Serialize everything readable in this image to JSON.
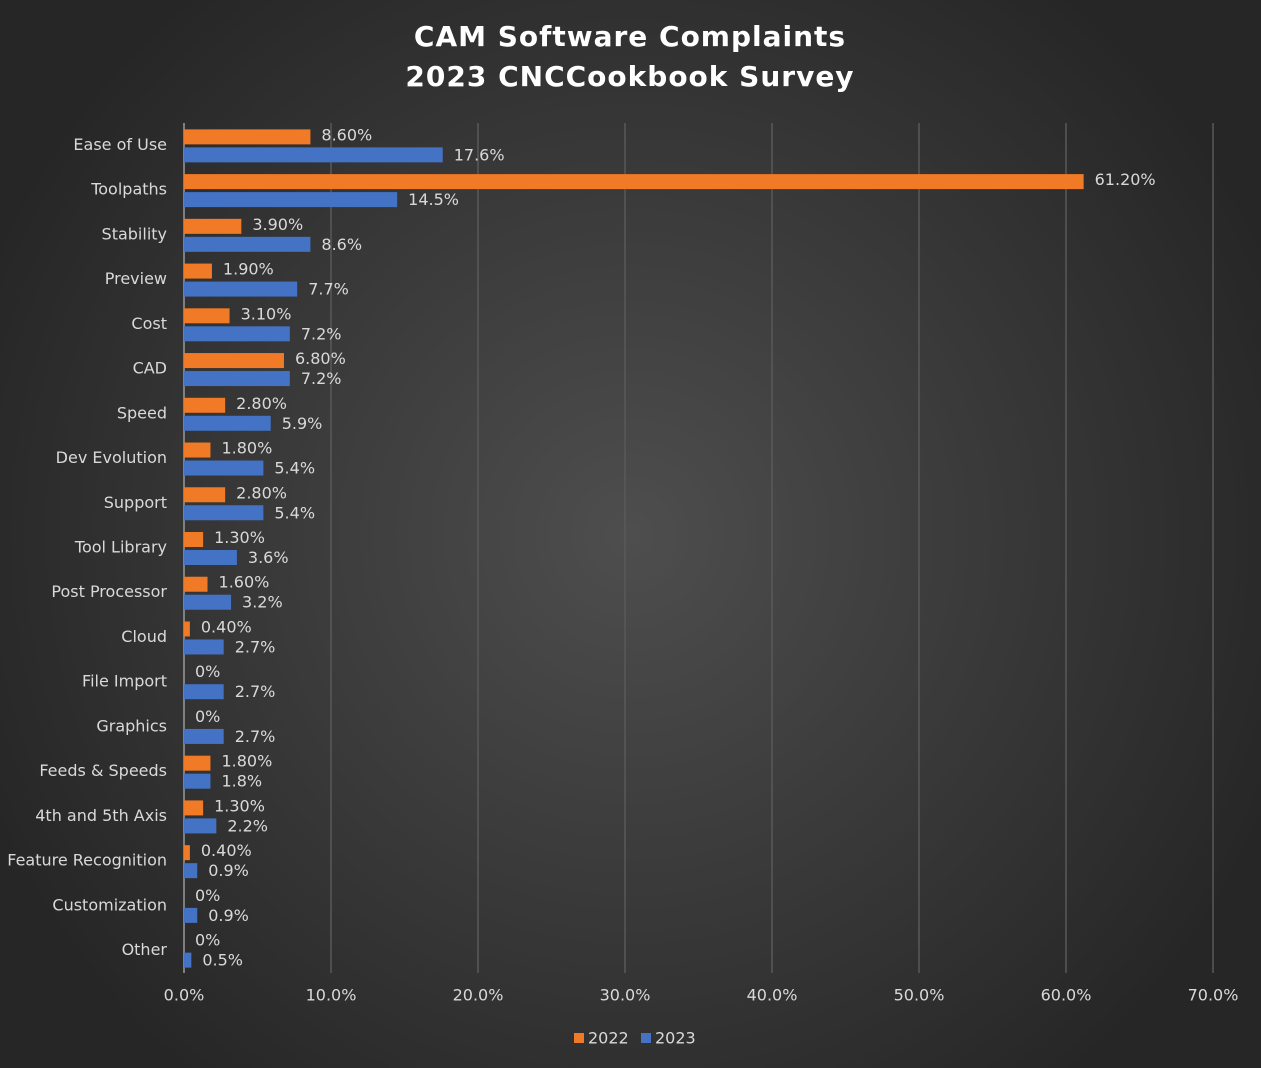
{
  "chart_data": {
    "type": "bar",
    "orientation": "horizontal",
    "title": "CAM Software Complaints",
    "subtitle": "2023 CNCCookbook Survey",
    "categories": [
      "Ease of Use",
      "Toolpaths",
      "Stability",
      "Preview",
      "Cost",
      "CAD",
      "Speed",
      "Dev Evolution",
      "Support",
      "Tool Library",
      "Post Processor",
      "Cloud",
      "File Import",
      "Graphics",
      "Feeds & Speeds",
      "4th and 5th Axis",
      "Feature Recognition",
      "Customization",
      "Other"
    ],
    "series": [
      {
        "name": "2022",
        "color": "#f07a25",
        "values": [
          8.6,
          61.2,
          3.9,
          1.9,
          3.1,
          6.8,
          2.8,
          1.8,
          2.8,
          1.3,
          1.6,
          0.4,
          0,
          0,
          1.8,
          1.3,
          0.4,
          0,
          0
        ],
        "value_labels": [
          "8.60%",
          "61.20%",
          "3.90%",
          "1.90%",
          "3.10%",
          "6.80%",
          "2.80%",
          "1.80%",
          "2.80%",
          "1.30%",
          "1.60%",
          "0.40%",
          "0%",
          "0%",
          "1.80%",
          "1.30%",
          "0.40%",
          "0%",
          "0%"
        ]
      },
      {
        "name": "2023",
        "color": "#4472c4",
        "values": [
          17.6,
          14.5,
          8.6,
          7.7,
          7.2,
          7.2,
          5.9,
          5.4,
          5.4,
          3.6,
          3.2,
          2.7,
          2.7,
          2.7,
          1.8,
          2.2,
          0.9,
          0.9,
          0.5
        ],
        "value_labels": [
          "17.6%",
          "14.5%",
          "8.6%",
          "7.7%",
          "7.2%",
          "7.2%",
          "5.9%",
          "5.4%",
          "5.4%",
          "3.6%",
          "3.2%",
          "2.7%",
          "2.7%",
          "2.7%",
          "1.8%",
          "2.2%",
          "0.9%",
          "0.9%",
          "0.5%"
        ]
      }
    ],
    "xlim": [
      0,
      70
    ],
    "xticks": [
      {
        "value": 0,
        "label": "0.0%"
      },
      {
        "value": 10,
        "label": "10.0%"
      },
      {
        "value": 20,
        "label": "20.0%"
      },
      {
        "value": 30,
        "label": "30.0%"
      },
      {
        "value": 40,
        "label": "40.0%"
      },
      {
        "value": 50,
        "label": "50.0%"
      },
      {
        "value": 60,
        "label": "60.0%"
      },
      {
        "value": 70,
        "label": "70.0%"
      }
    ],
    "grid": true,
    "legend": "bottom"
  }
}
